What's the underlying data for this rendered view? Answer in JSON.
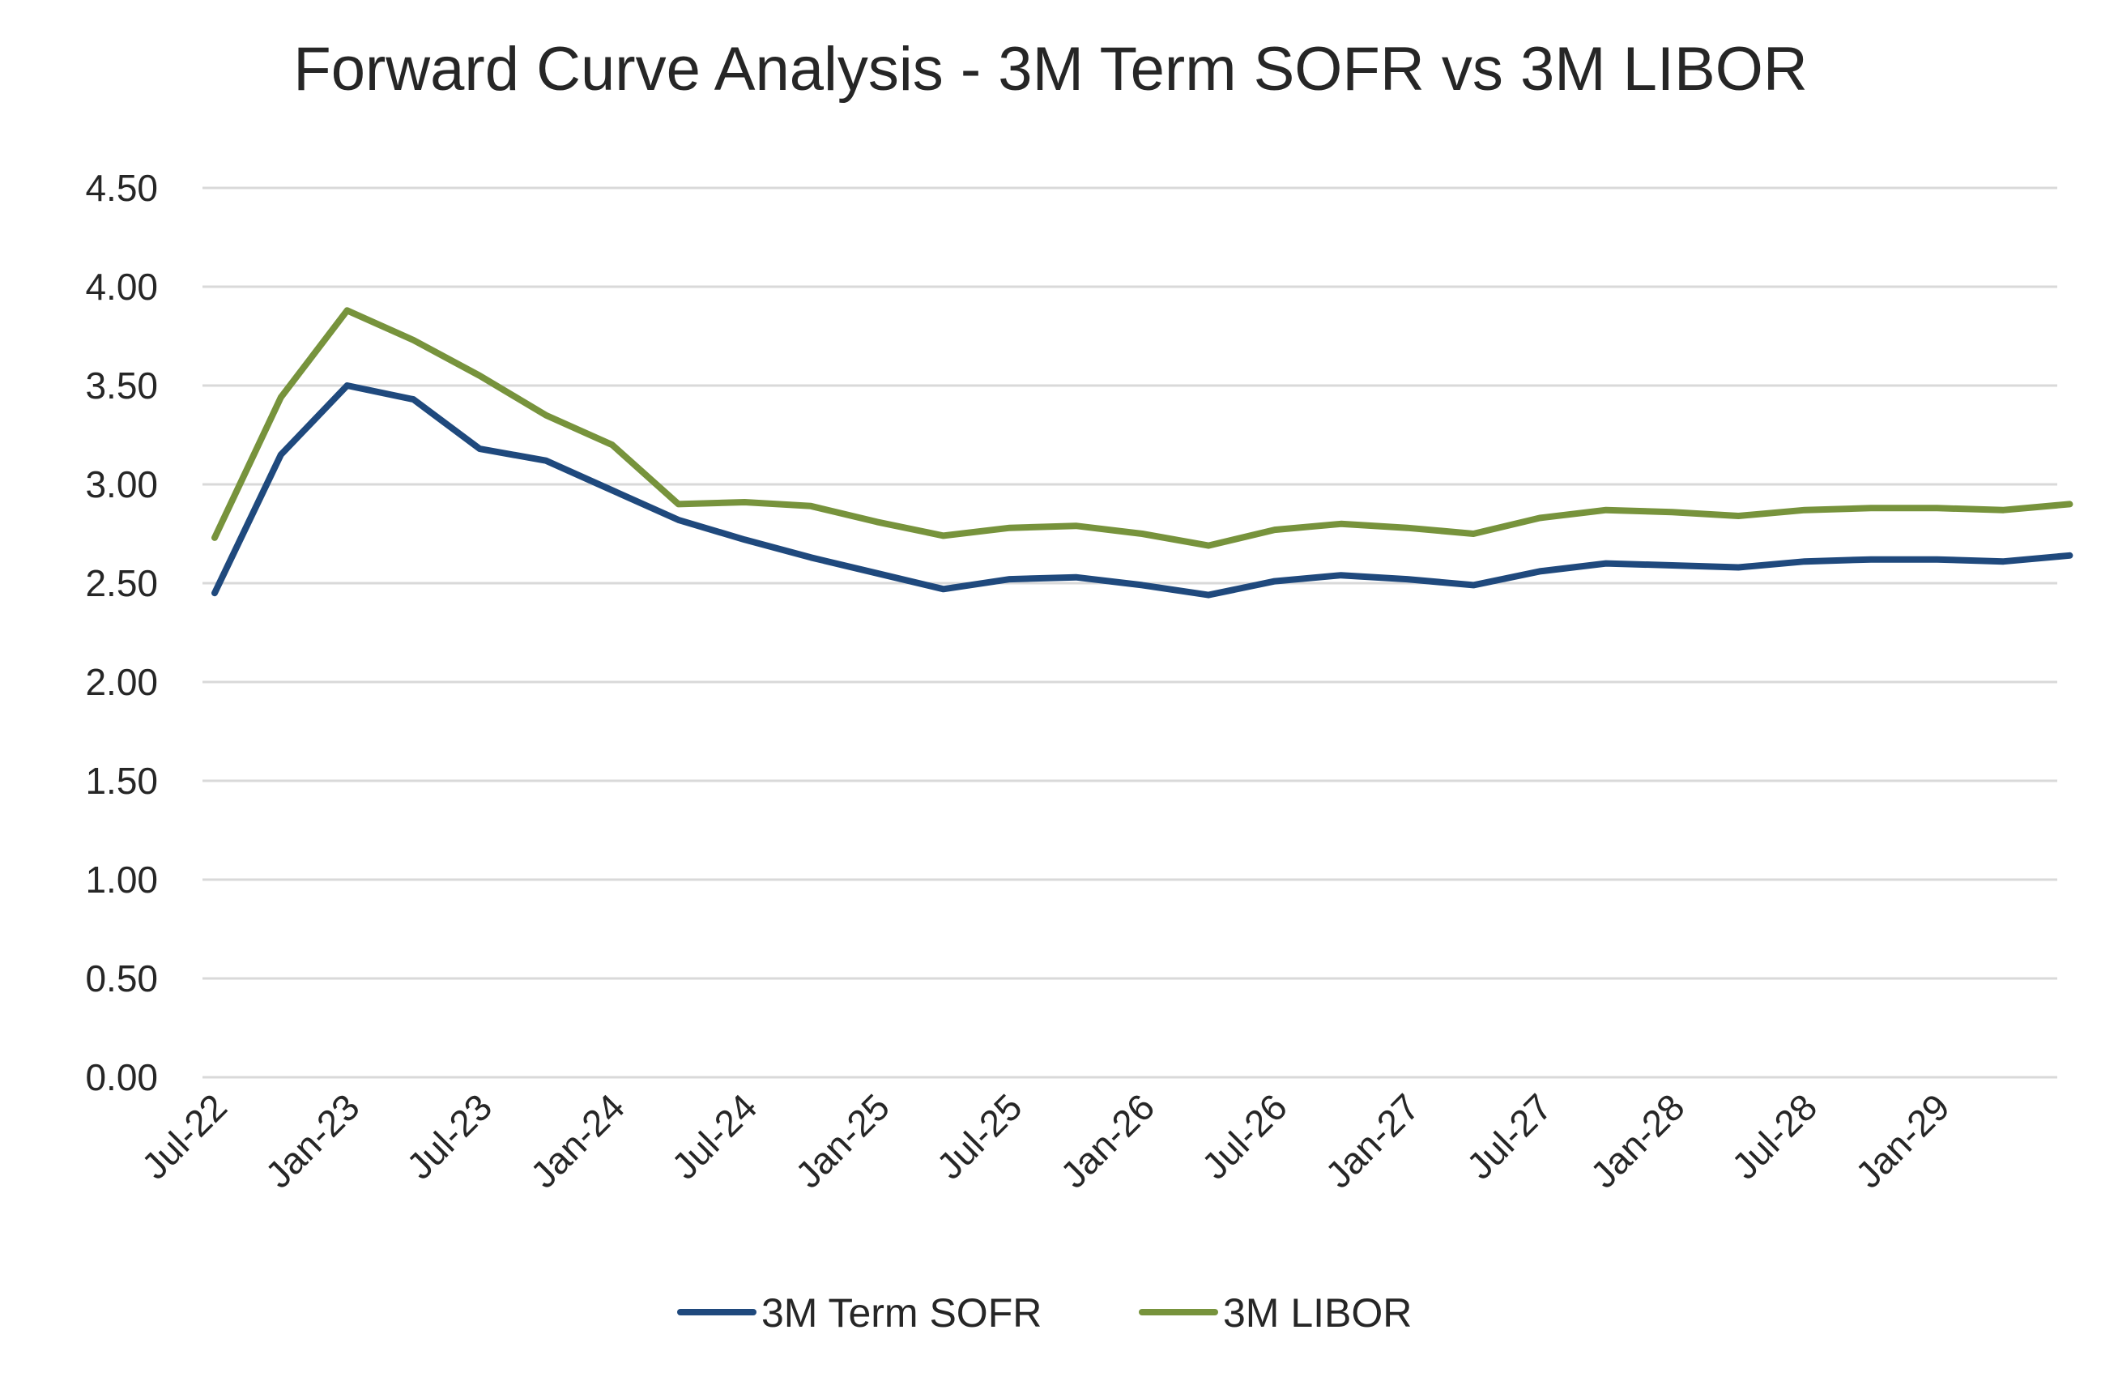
{
  "chart_data": {
    "type": "line",
    "title": "Forward Curve Analysis - 3M Term SOFR vs 3M LIBOR",
    "xlabel": "",
    "ylabel": "",
    "ylim": [
      0,
      4.5
    ],
    "y_ticks": [
      "0.00",
      "0.50",
      "1.00",
      "1.50",
      "2.00",
      "2.50",
      "3.00",
      "3.50",
      "4.00",
      "4.50"
    ],
    "x_tick_labels": [
      "Jul-22",
      "Jan-23",
      "Jul-23",
      "Jan-24",
      "Jul-24",
      "Jan-25",
      "Jul-25",
      "Jan-26",
      "Jul-26",
      "Jan-27",
      "Jul-27",
      "Jan-28",
      "Jul-28",
      "Jan-29"
    ],
    "x": [
      "Jul-22",
      "Oct-22",
      "Jan-23",
      "Apr-23",
      "Jul-23",
      "Oct-23",
      "Jan-24",
      "Apr-24",
      "Jul-24",
      "Oct-24",
      "Jan-25",
      "Apr-25",
      "Jul-25",
      "Oct-25",
      "Jan-26",
      "Apr-26",
      "Jul-26",
      "Oct-26",
      "Jan-27",
      "Apr-27",
      "Jul-27",
      "Oct-27",
      "Jan-28",
      "Apr-28",
      "Jul-28",
      "Oct-28",
      "Jan-29",
      "Apr-29",
      "Jul-29"
    ],
    "series": [
      {
        "name": "3M Term SOFR",
        "color": "#1f497d",
        "values": [
          2.45,
          3.15,
          3.5,
          3.43,
          3.18,
          3.12,
          2.97,
          2.82,
          2.72,
          2.63,
          2.55,
          2.47,
          2.52,
          2.53,
          2.49,
          2.44,
          2.51,
          2.54,
          2.52,
          2.49,
          2.56,
          2.6,
          2.59,
          2.58,
          2.61,
          2.62,
          2.62,
          2.61,
          2.64
        ]
      },
      {
        "name": "3M LIBOR",
        "color": "#77933c",
        "values": [
          2.73,
          3.44,
          3.88,
          3.73,
          3.55,
          3.35,
          3.2,
          2.9,
          2.91,
          2.89,
          2.81,
          2.74,
          2.78,
          2.79,
          2.75,
          2.69,
          2.77,
          2.8,
          2.78,
          2.75,
          2.83,
          2.87,
          2.86,
          2.84,
          2.87,
          2.88,
          2.88,
          2.87,
          2.9
        ]
      }
    ],
    "grid": true,
    "legend_position": "bottom"
  }
}
